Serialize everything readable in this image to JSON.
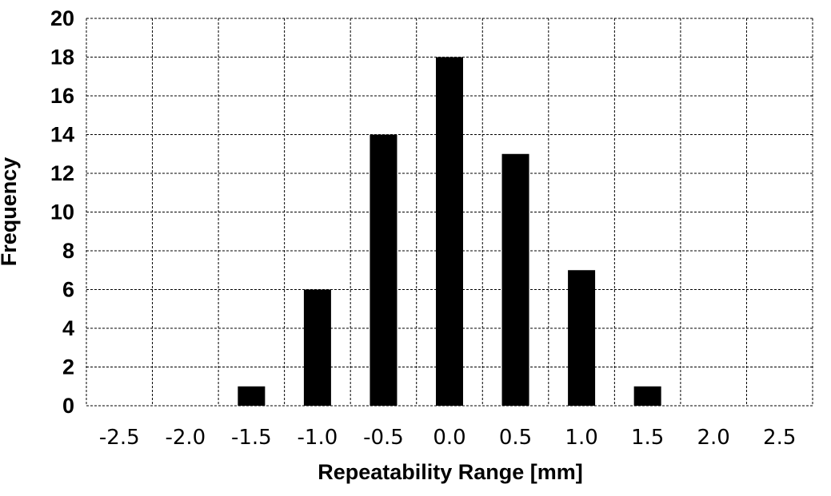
{
  "chart_data": {
    "type": "bar",
    "categories": [
      "-2.5",
      "-2.0",
      "-1.5",
      "-1.0",
      "-0.5",
      "0.0",
      "0.5",
      "1.0",
      "1.5",
      "2.0",
      "2.5"
    ],
    "values": [
      0,
      0,
      1,
      6,
      14,
      18,
      13,
      7,
      1,
      0,
      0
    ],
    "xlabel": "Repeatability Range [mm]",
    "ylabel": "Frequency",
    "ylim": [
      0,
      20
    ],
    "yticks": [
      "0",
      "2",
      "4",
      "6",
      "8",
      "10",
      "12",
      "14",
      "16",
      "18",
      "20"
    ],
    "grid": true,
    "bar_color": "#000000",
    "legend": "none"
  }
}
